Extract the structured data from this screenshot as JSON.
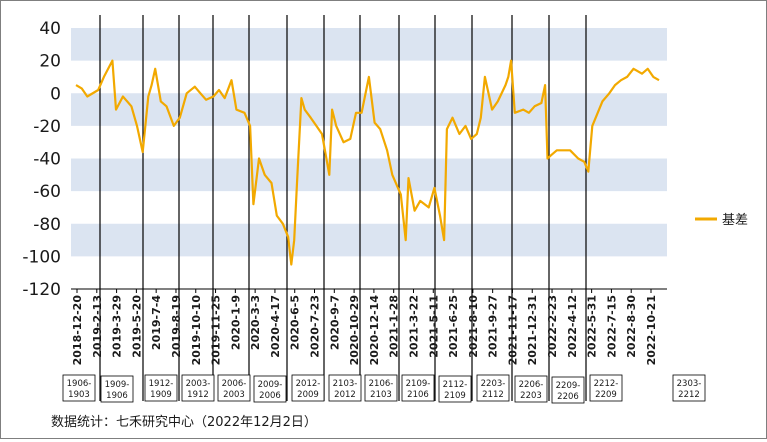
{
  "chart_data": {
    "type": "line",
    "ylim": [
      -120,
      40
    ],
    "yticks": [
      40,
      20,
      0,
      -20,
      -40,
      -60,
      -80,
      -100,
      -120
    ],
    "grid": "alternating horizontal bands",
    "legend_position": "right",
    "colors": {
      "line": "#f2a900",
      "band": "#dbe4f1",
      "axis": "#000000"
    },
    "x_tick_labels": [
      "2018-12-20",
      "2019-2-13",
      "2019-3-29",
      "2019-5-20",
      "2019-7-4",
      "2019-8-19",
      "2019-10-10",
      "2019-11-25",
      "2020-1-9",
      "2020-3-3",
      "2020-4-17",
      "2020-6-5",
      "2020-7-23",
      "2020-9-7",
      "2020-10-29",
      "2020-12-14",
      "2021-1-28",
      "2021-3-22",
      "2021-5-11",
      "2021-6-25",
      "2021-8-10",
      "2021-9-27",
      "2021-11-17",
      "2021-12-31",
      "2022-2-23",
      "2022-4-12",
      "2022-5-31",
      "2022-7-15",
      "2022-8-30",
      "2022-10-21"
    ],
    "series": [
      {
        "name": "基差",
        "x": [
          "2018-12-20",
          "2019-1-3",
          "2019-1-17",
          "2019-2-13",
          "2019-2-27",
          "2019-3-20",
          "2019-3-29",
          "2019-4-15",
          "2019-5-6",
          "2019-5-20",
          "2019-6-3",
          "2019-6-17",
          "2019-6-25",
          "2019-7-4",
          "2019-7-18",
          "2019-8-1",
          "2019-8-19",
          "2019-9-3",
          "2019-9-20",
          "2019-10-10",
          "2019-10-24",
          "2019-11-7",
          "2019-11-25",
          "2019-12-9",
          "2019-12-23",
          "2020-1-9",
          "2020-1-21",
          "2020-2-10",
          "2020-2-24",
          "2020-3-3",
          "2020-3-17",
          "2020-3-31",
          "2020-4-17",
          "2020-4-30",
          "2020-5-15",
          "2020-5-28",
          "2020-6-5",
          "2020-6-12",
          "2020-6-19",
          "2020-6-30",
          "2020-7-8",
          "2020-7-23",
          "2020-8-6",
          "2020-8-20",
          "2020-9-7",
          "2020-9-14",
          "2020-9-24",
          "2020-10-12",
          "2020-10-29",
          "2020-11-12",
          "2020-11-26",
          "2020-12-14",
          "2020-12-28",
          "2021-1-11",
          "2021-1-28",
          "2021-2-10",
          "2021-3-3",
          "2021-3-15",
          "2021-3-22",
          "2021-4-6",
          "2021-4-20",
          "2021-5-11",
          "2021-5-25",
          "2021-6-8",
          "2021-6-18",
          "2021-6-25",
          "2021-7-9",
          "2021-7-26",
          "2021-8-10",
          "2021-8-24",
          "2021-9-7",
          "2021-9-17",
          "2021-9-27",
          "2021-10-15",
          "2021-10-29",
          "2021-11-17",
          "2021-11-24",
          "2021-12-1",
          "2021-12-10",
          "2021-12-31",
          "2022-1-14",
          "2022-1-28",
          "2022-2-14",
          "2022-2-23",
          "2022-3-1",
          "2022-3-10",
          "2022-3-24",
          "2022-4-12",
          "2022-4-26",
          "2022-5-16",
          "2022-5-31",
          "2022-6-10",
          "2022-6-20",
          "2022-7-15",
          "2022-8-1",
          "2022-8-15",
          "2022-8-30",
          "2022-9-14",
          "2022-9-30",
          "2022-10-21",
          "2022-11-4",
          "2022-11-18",
          "2022-12-2"
        ],
        "values": [
          5,
          3,
          -2,
          2,
          10,
          20,
          -10,
          -2,
          -8,
          -20,
          -36,
          -2,
          5,
          15,
          -5,
          -8,
          -20,
          -15,
          0,
          4,
          0,
          -4,
          -2,
          2,
          -3,
          8,
          -10,
          -12,
          -20,
          -68,
          -40,
          -50,
          -55,
          -75,
          -80,
          -88,
          -105,
          -90,
          -55,
          -3,
          -10,
          -15,
          -20,
          -25,
          -50,
          -10,
          -20,
          -30,
          -28,
          -12,
          -12,
          10,
          -18,
          -22,
          -35,
          -50,
          -62,
          -90,
          -52,
          -72,
          -66,
          -70,
          -58,
          -75,
          -90,
          -22,
          -15,
          -25,
          -20,
          -28,
          -25,
          -15,
          10,
          -10,
          -5,
          5,
          10,
          20,
          -12,
          -10,
          -12,
          -8,
          -6,
          5,
          -40,
          -38,
          -35,
          -35,
          -35,
          -40,
          -42,
          -48,
          -20,
          -5,
          0,
          5,
          8,
          10,
          15,
          12,
          15,
          10,
          8
        ]
      }
    ],
    "contracts": [
      "1906-1903",
      "1909-1906",
      "1912-1909",
      "2003-1912",
      "2006-2003",
      "2009-2006",
      "2012-2009",
      "2103-2012",
      "2106-2103",
      "2109-2106",
      "2112-2109",
      "2203-2112",
      "2206-2203",
      "2209-2206",
      "2212-2209",
      "2303-2212"
    ],
    "source": "数据统计：七禾研究中心（2022年12月2日）"
  }
}
